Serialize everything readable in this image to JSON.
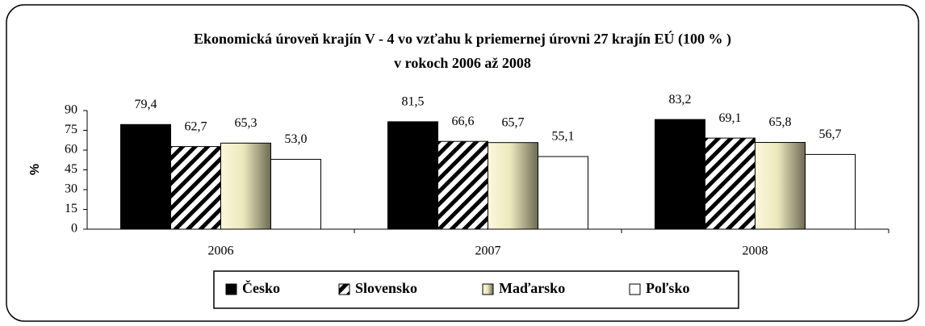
{
  "chart_data": {
    "type": "bar",
    "title": [
      "Ekonomická úroveň krajín V - 4 vo vzťahu k priemernej úrovni 27 krajín EÚ (100 % )",
      "v rokoch 2006 až 2008"
    ],
    "y_label": "%",
    "categories": [
      "2006",
      "2007",
      "2008"
    ],
    "series": [
      {
        "name": "Česko",
        "color": "#000000",
        "values": [
          79.4,
          81.5,
          83.2
        ],
        "value_labels": [
          "79,4",
          "81,5",
          "83,2"
        ]
      },
      {
        "name": "Slovensko",
        "color": "#000000",
        "pattern": "hatch",
        "values": [
          62.7,
          66.6,
          69.1
        ],
        "value_labels": [
          "62,7",
          "66,6",
          "69,1"
        ]
      },
      {
        "name": "Maďarsko",
        "color": "#f4f0c8",
        "pattern": "gradient",
        "values": [
          65.3,
          65.7,
          65.8
        ],
        "value_labels": [
          "65,3",
          "65,7",
          "65,8"
        ]
      },
      {
        "name": "Poľsko",
        "color": "#ffffff",
        "values": [
          53.0,
          55.1,
          56.7
        ],
        "value_labels": [
          "53,0",
          "55,1",
          "56,7"
        ]
      }
    ],
    "ylim": [
      0,
      90
    ],
    "yticks": [
      0,
      15,
      30,
      45,
      60,
      75,
      90
    ],
    "legend": "bottom"
  }
}
